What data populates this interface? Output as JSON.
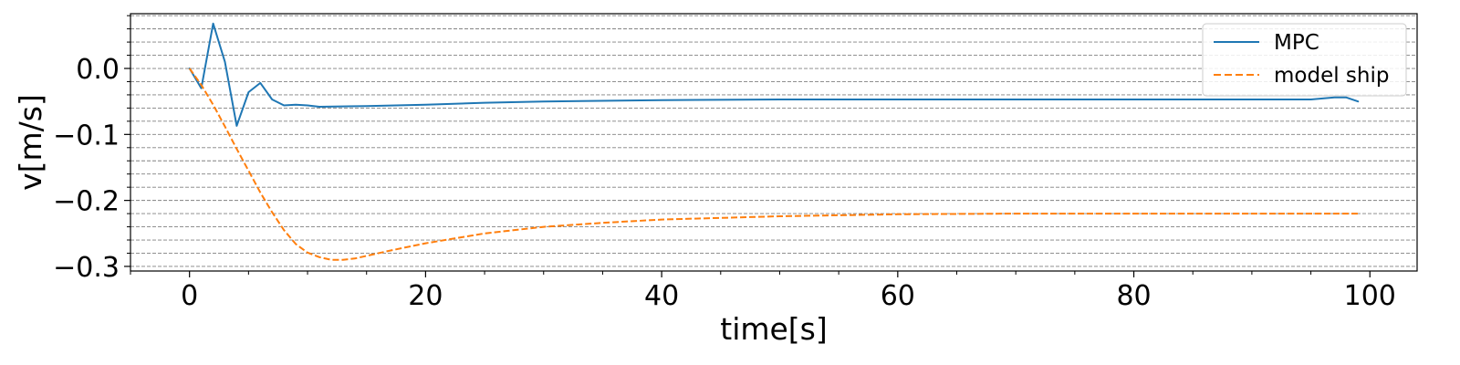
{
  "chart_data": {
    "type": "line",
    "title": "",
    "xlabel": "time[s]",
    "ylabel": "v[m/s]",
    "xlim": [
      -5,
      104
    ],
    "ylim": [
      -0.307,
      0.083
    ],
    "x_ticks": [
      0,
      20,
      40,
      60,
      80,
      100
    ],
    "y_ticks": [
      0.0,
      -0.1,
      -0.2,
      -0.3
    ],
    "x_tick_labels": [
      "0",
      "20",
      "40",
      "60",
      "80",
      "100"
    ],
    "y_tick_labels": [
      "0.0",
      "−0.1",
      "−0.2",
      "−0.3"
    ],
    "x_minor_tick_step": 5,
    "y_minor_tick_step": 0.02,
    "grid": {
      "y_minor_lines": true,
      "style": "dashed",
      "color": "#808080"
    },
    "legend": {
      "position": "top-right"
    },
    "series": [
      {
        "name": "MPC",
        "color": "#1f77b4",
        "dash": "solid",
        "points": [
          [
            0,
            0.0
          ],
          [
            1,
            -0.03
          ],
          [
            2,
            0.068
          ],
          [
            3,
            0.01
          ],
          [
            4,
            -0.087
          ],
          [
            5,
            -0.036
          ],
          [
            6,
            -0.022
          ],
          [
            7,
            -0.047
          ],
          [
            8,
            -0.056
          ],
          [
            9,
            -0.055
          ],
          [
            10,
            -0.056
          ],
          [
            11,
            -0.058
          ],
          [
            15,
            -0.057
          ],
          [
            20,
            -0.055
          ],
          [
            25,
            -0.052
          ],
          [
            30,
            -0.05
          ],
          [
            40,
            -0.048
          ],
          [
            50,
            -0.047
          ],
          [
            60,
            -0.047
          ],
          [
            70,
            -0.047
          ],
          [
            80,
            -0.047
          ],
          [
            90,
            -0.047
          ],
          [
            95,
            -0.047
          ],
          [
            97,
            -0.044
          ],
          [
            98,
            -0.044
          ],
          [
            99,
            -0.05
          ]
        ]
      },
      {
        "name": "model ship",
        "color": "#ff7f0e",
        "dash": "dashed",
        "points": [
          [
            0,
            0.0
          ],
          [
            1,
            -0.025
          ],
          [
            2,
            -0.055
          ],
          [
            3,
            -0.088
          ],
          [
            4,
            -0.122
          ],
          [
            5,
            -0.155
          ],
          [
            6,
            -0.188
          ],
          [
            7,
            -0.218
          ],
          [
            8,
            -0.245
          ],
          [
            9,
            -0.266
          ],
          [
            10,
            -0.279
          ],
          [
            11,
            -0.286
          ],
          [
            12,
            -0.29
          ],
          [
            13,
            -0.29
          ],
          [
            14,
            -0.288
          ],
          [
            15,
            -0.284
          ],
          [
            17,
            -0.276
          ],
          [
            20,
            -0.265
          ],
          [
            25,
            -0.25
          ],
          [
            30,
            -0.24
          ],
          [
            35,
            -0.234
          ],
          [
            40,
            -0.229
          ],
          [
            50,
            -0.224
          ],
          [
            60,
            -0.221
          ],
          [
            70,
            -0.22
          ],
          [
            80,
            -0.22
          ],
          [
            90,
            -0.22
          ],
          [
            99,
            -0.22
          ]
        ]
      }
    ]
  }
}
